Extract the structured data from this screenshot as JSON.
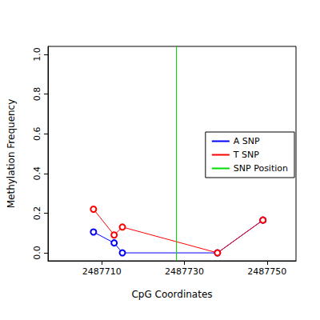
{
  "chart_data": {
    "type": "line",
    "x_label": "CpG Coordinates",
    "y_label": "Methylation Frequency",
    "xlim": [
      2487697,
      2487757
    ],
    "xticks": [
      2487710,
      2487730,
      2487750
    ],
    "ylim": [
      -0.04,
      1.04
    ],
    "yticks": [
      {
        "value": 0,
        "label": "0.0"
      },
      0.2,
      0.4,
      0.6,
      0.8,
      {
        "value": 1,
        "label": "1.0"
      }
    ],
    "grid": false,
    "legend": "right",
    "marker": "open_circle",
    "series": [
      {
        "name": "A SNP",
        "color": "#0000ff",
        "x": [
          2487708,
          2487713,
          2487715,
          2487738,
          2487749
        ],
        "values": [
          0.105,
          0.05,
          0.0,
          0.0,
          0.165
        ]
      },
      {
        "name": "T SNP",
        "color": "#ff0000",
        "x": [
          2487708,
          2487713,
          2487715,
          2487738,
          2487749
        ],
        "values": [
          0.22,
          0.09,
          0.13,
          0.0,
          0.165
        ]
      },
      {
        "name": "SNP Position",
        "color": "#00dd00",
        "type": "vline",
        "x": [
          2487728
        ]
      }
    ]
  }
}
